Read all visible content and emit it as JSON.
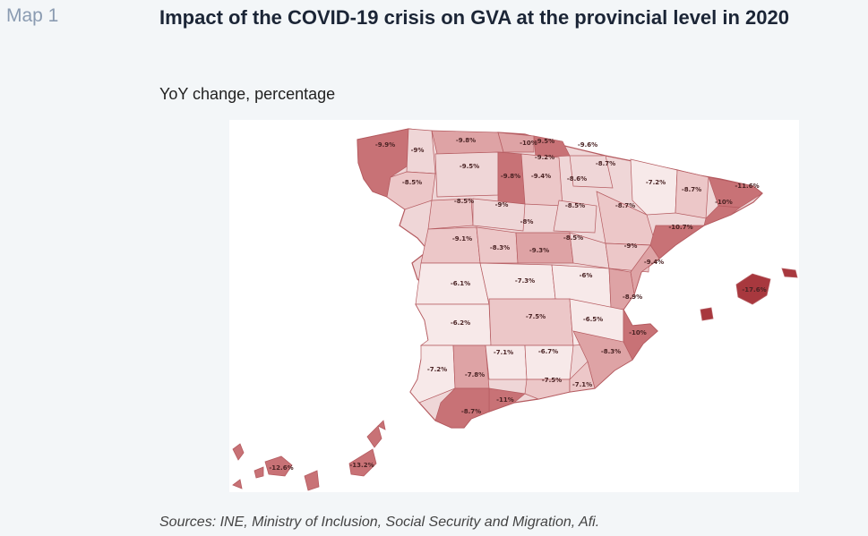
{
  "map_label": "Map 1",
  "title": "Impact of the COVID-19 crisis on GVA at the provincial level in 2020",
  "subtitle": "YoY change, percentage",
  "sources": "Sources: INE, Ministry of Inclusion, Social Security and Migration, Afi.",
  "colors": {
    "light": "#f7e9e9",
    "mid_light": "#ecc7c8",
    "mid": "#dea3a5",
    "dark": "#c87276",
    "darkest": "#a8383e",
    "border": "#b55b60",
    "frame": "#ffffff"
  },
  "provinces": [
    {
      "label": "-9.9%"
    },
    {
      "label": "-9%"
    },
    {
      "label": "-9.8%"
    },
    {
      "label": "-10%"
    },
    {
      "label": "-9.5%"
    },
    {
      "label": "-9.6%"
    },
    {
      "label": "-9.2%"
    },
    {
      "label": "-9.5%"
    },
    {
      "label": "-8.5%"
    },
    {
      "label": "-9.8%"
    },
    {
      "label": "-9.4%"
    },
    {
      "label": "-8.6%"
    },
    {
      "label": "-8.7%"
    },
    {
      "label": "-7.2%"
    },
    {
      "label": "-8.7%"
    },
    {
      "label": "-11.6%"
    },
    {
      "label": "-8.5%"
    },
    {
      "label": "-9%"
    },
    {
      "label": "-8%"
    },
    {
      "label": "-8.5%"
    },
    {
      "label": "-8.7%"
    },
    {
      "label": "-10%"
    },
    {
      "label": "-10.7%"
    },
    {
      "label": "-9.1%"
    },
    {
      "label": "-8.3%"
    },
    {
      "label": "-9.3%"
    },
    {
      "label": "-8.5%"
    },
    {
      "label": "-9%"
    },
    {
      "label": "-9.4%"
    },
    {
      "label": "-6.1%"
    },
    {
      "label": "-7.3%"
    },
    {
      "label": "-6%"
    },
    {
      "label": "-8.9%"
    },
    {
      "label": "-6.2%"
    },
    {
      "label": "-7.5%"
    },
    {
      "label": "-6.5%"
    },
    {
      "label": "-10%"
    },
    {
      "label": "-7.1%"
    },
    {
      "label": "-6.7%"
    },
    {
      "label": "-8.3%"
    },
    {
      "label": "-7.2%"
    },
    {
      "label": "-7.8%"
    },
    {
      "label": "-7.5%"
    },
    {
      "label": "-7.1%"
    },
    {
      "label": "-11%"
    },
    {
      "label": "-8.7%"
    },
    {
      "label": "-17.6%"
    },
    {
      "label": "-12.6%"
    },
    {
      "label": "-13.2%"
    }
  ]
}
